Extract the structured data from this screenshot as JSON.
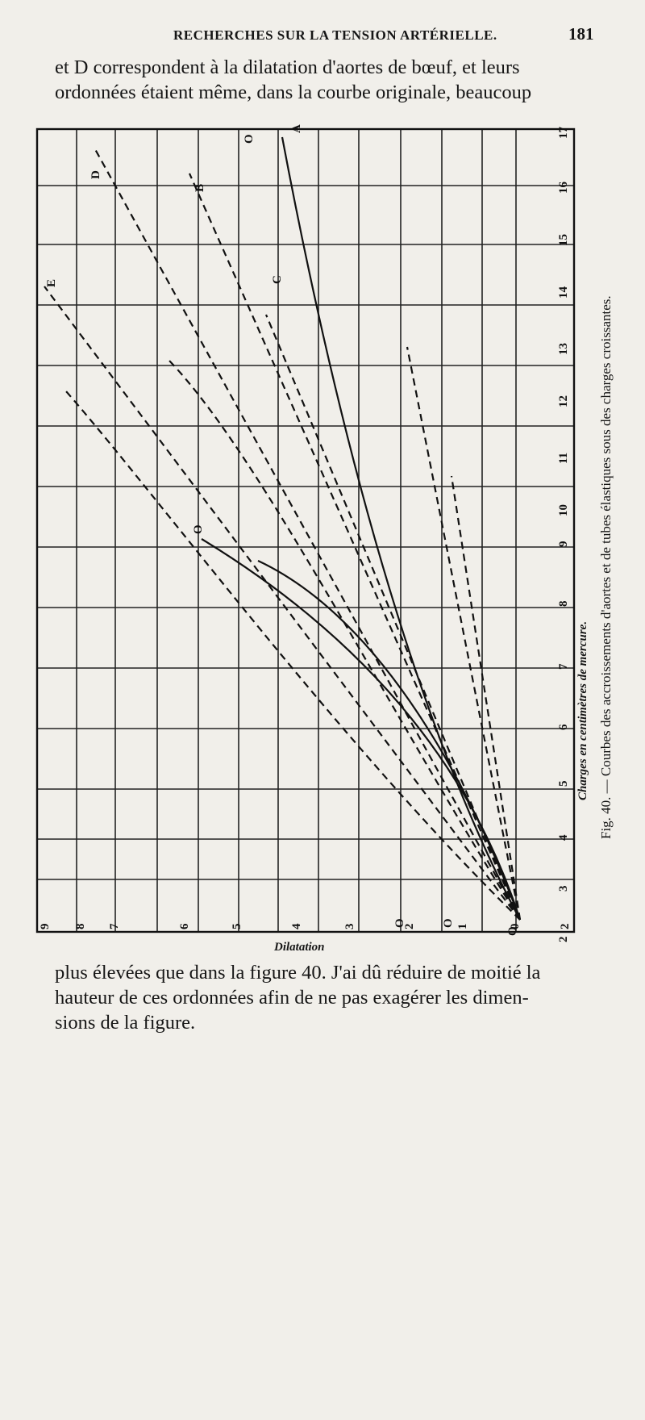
{
  "header": {
    "running_head": "RECHERCHES SUR LA TENSION ARTÉRIELLE.",
    "page_number": "181"
  },
  "text_top": [
    "et D correspondent à la dilatation d'aortes de bœuf, et leurs",
    "ordonnées étaient même, dans la courbe originale, beaucoup"
  ],
  "text_bottom": [
    "plus élevées que dans la figure 40. J'ai dû réduire de moitié la",
    "hauteur de ces ordonnées afin de ne pas exagérer les dimen-",
    "sions de la figure."
  ],
  "figure": {
    "caption": "Fig. 40. — Courbes des accroissements d'aortes et de tubes élastiques sous des charges croissantes.",
    "chart_data": {
      "type": "line",
      "xlabel": "Dilatation",
      "ylabel": "Charges en centimètres de mercure.",
      "x_ticks": [
        "9",
        "8",
        "7",
        "6",
        "5",
        "4",
        "3",
        "2",
        "1",
        "0",
        "2"
      ],
      "y_ticks": [
        "2",
        "3",
        "4",
        "5",
        "6",
        "7",
        "8",
        "9",
        "10",
        "11",
        "12",
        "13",
        "14",
        "15",
        "16",
        "17"
      ],
      "curve_labels": [
        "A",
        "B",
        "C",
        "D",
        "E",
        "O",
        "O",
        "O",
        "O",
        "O"
      ],
      "grid": true,
      "series": [
        {
          "name": "A",
          "style": "solid"
        },
        {
          "name": "B",
          "style": "dashed"
        },
        {
          "name": "C",
          "style": "dashed"
        },
        {
          "name": "D",
          "style": "dashed"
        },
        {
          "name": "E",
          "style": "dashed"
        }
      ]
    }
  }
}
